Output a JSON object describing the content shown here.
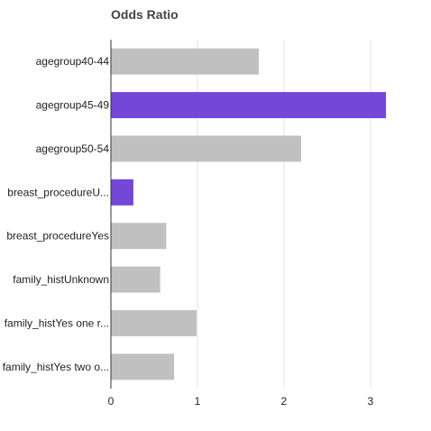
{
  "chart_data": {
    "type": "bar",
    "orientation": "horizontal",
    "title": "Odds Ratio",
    "xlabel": "",
    "ylabel": "",
    "categories": [
      "agegroup40-44",
      "agegroup45-49",
      "agegroup50-54",
      "breast_procedureU...",
      "breast_procedureYes",
      "family_histUnknown",
      "family_histYes one r...",
      "family_histYes two o..."
    ],
    "values": [
      1.71,
      3.18,
      2.2,
      0.26,
      0.64,
      0.57,
      0.99,
      0.73
    ],
    "highlighted": [
      false,
      true,
      false,
      true,
      false,
      false,
      false,
      false
    ],
    "xlim": [
      0,
      3.2
    ],
    "xticks": [
      "0",
      "1",
      "2",
      "3"
    ],
    "grid": true,
    "colors": {
      "bar": "#c0c0c0",
      "highlight": "#7547d6",
      "grid": "#e0e0e0",
      "axis": "#333333"
    }
  }
}
